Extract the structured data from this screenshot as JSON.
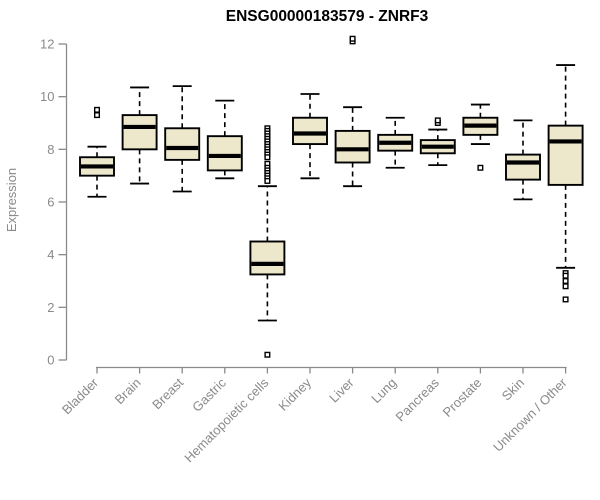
{
  "chart_data": {
    "type": "box",
    "title": "ENSG00000183579 - ZNRF3",
    "ylabel": "Expression",
    "xlabel": "",
    "ylim": [
      0,
      12
    ],
    "yticks": [
      0,
      2,
      4,
      6,
      8,
      10,
      12
    ],
    "grid": false,
    "legend": "none",
    "categories": [
      "Bladder",
      "Brain",
      "Breast",
      "Gastric",
      "Hematopoietic cells",
      "Kidney",
      "Liver",
      "Lung",
      "Pancreas",
      "Prostate",
      "Skin",
      "Unknown / Other"
    ],
    "series": [
      {
        "category": "Bladder",
        "whisker_low": 6.2,
        "q1": 7.0,
        "median": 7.35,
        "q3": 7.7,
        "whisker_high": 8.1,
        "outliers": [
          9.3,
          9.5
        ]
      },
      {
        "category": "Brain",
        "whisker_low": 6.7,
        "q1": 8.0,
        "median": 8.85,
        "q3": 9.3,
        "whisker_high": 10.35,
        "outliers": []
      },
      {
        "category": "Breast",
        "whisker_low": 6.4,
        "q1": 7.6,
        "median": 8.05,
        "q3": 8.8,
        "whisker_high": 10.4,
        "outliers": []
      },
      {
        "category": "Gastric",
        "whisker_low": 6.9,
        "q1": 7.2,
        "median": 7.75,
        "q3": 8.5,
        "whisker_high": 9.85,
        "outliers": []
      },
      {
        "category": "Hematopoietic cells",
        "whisker_low": 1.5,
        "q1": 3.25,
        "median": 3.65,
        "q3": 4.5,
        "whisker_high": 6.6,
        "outliers": [
          8.8,
          8.7,
          8.6,
          8.5,
          8.4,
          8.3,
          8.2,
          8.1,
          8.0,
          7.9,
          7.8,
          7.7,
          7.45,
          7.3,
          7.2,
          7.1,
          7.0,
          6.9,
          6.8,
          0.2
        ]
      },
      {
        "category": "Kidney",
        "whisker_low": 6.9,
        "q1": 8.2,
        "median": 8.6,
        "q3": 9.2,
        "whisker_high": 10.1,
        "outliers": []
      },
      {
        "category": "Liver",
        "whisker_low": 6.6,
        "q1": 7.5,
        "median": 8.0,
        "q3": 8.7,
        "whisker_high": 9.6,
        "outliers": [
          12.1,
          12.2
        ]
      },
      {
        "category": "Lung",
        "whisker_low": 7.3,
        "q1": 7.95,
        "median": 8.25,
        "q3": 8.55,
        "whisker_high": 9.2,
        "outliers": []
      },
      {
        "category": "Pancreas",
        "whisker_low": 7.4,
        "q1": 7.85,
        "median": 8.1,
        "q3": 8.35,
        "whisker_high": 8.75,
        "outliers": [
          9.0,
          9.1
        ]
      },
      {
        "category": "Prostate",
        "whisker_low": 8.2,
        "q1": 8.55,
        "median": 8.9,
        "q3": 9.2,
        "whisker_high": 9.7,
        "outliers": [
          7.3
        ]
      },
      {
        "category": "Skin",
        "whisker_low": 6.1,
        "q1": 6.85,
        "median": 7.5,
        "q3": 7.8,
        "whisker_high": 9.1,
        "outliers": []
      },
      {
        "category": "Unknown / Other",
        "whisker_low": 3.5,
        "q1": 6.65,
        "median": 8.3,
        "q3": 8.9,
        "whisker_high": 11.2,
        "outliers": [
          3.3,
          3.2,
          3.0,
          2.8,
          2.3
        ]
      }
    ],
    "colors": {
      "background": "#ffffff",
      "box_fill": "#ede8cc",
      "box_border": "#000000",
      "median": "#000000",
      "whisker": "#000000",
      "outlier_stroke": "#000000",
      "outlier_fill": "#ffffff",
      "axis": "#8a8a8a",
      "tick_label": "#8a8a8a",
      "title": "#000000"
    }
  }
}
